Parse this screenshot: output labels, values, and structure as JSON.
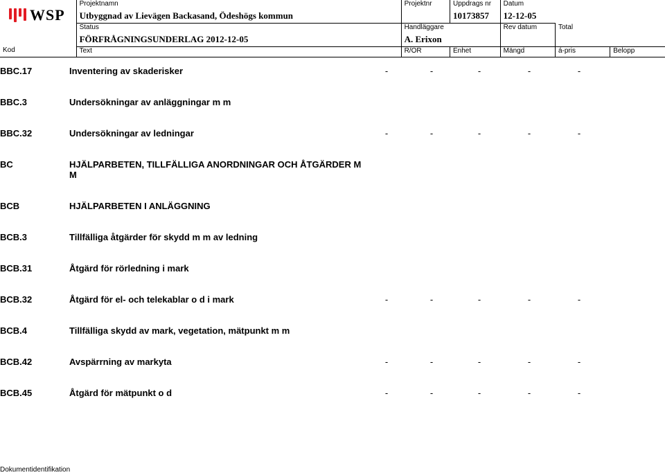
{
  "header": {
    "labels": {
      "projektnamn": "Projektnamn",
      "projektnr": "Projektnr",
      "uppdragsnr": "Uppdrags nr",
      "datum": "Datum",
      "status": "Status",
      "handlaggare": "Handläggare",
      "revdatum": "Rev datum",
      "total": "Total"
    },
    "values": {
      "projektnamn": "Utbyggnad av Lievägen Backasand, Ödeshögs kommun",
      "projektnr": "",
      "uppdragsnr": "10173857",
      "datum": "12-12-05",
      "status": "FÖRFRÅGNINGSUNDERLAG  2012-12-05",
      "handlaggare": "A. Erixon",
      "revdatum": "",
      "total": ""
    },
    "cols": {
      "kod": "Kod",
      "text": "Text",
      "ror": "R/OR",
      "enhet": "Enhet",
      "mangd": "Mängd",
      "apris": "á-pris",
      "belopp": "Belopp"
    }
  },
  "rows": [
    {
      "kod": "BBC.17",
      "text": "Inventering av skaderisker",
      "v": [
        "-",
        "-",
        "-",
        "-",
        "-"
      ]
    },
    {
      "kod": "BBC.3",
      "text": "Undersökningar av anläggningar m m",
      "v": [
        "",
        "",
        "",
        "",
        ""
      ]
    },
    {
      "kod": "BBC.32",
      "text": "Undersökningar av ledningar",
      "v": [
        "-",
        "-",
        "-",
        "-",
        "-"
      ]
    },
    {
      "kod": "BC",
      "text": "HJÄLPARBETEN, TILLFÄLLIGA ANORDNINGAR OCH ÅTGÄRDER M M",
      "v": [
        "",
        "",
        "",
        "",
        ""
      ]
    },
    {
      "kod": "BCB",
      "text": "HJÄLPARBETEN I ANLÄGGNING",
      "v": [
        "",
        "",
        "",
        "",
        ""
      ]
    },
    {
      "kod": "BCB.3",
      "text": "Tillfälliga åtgärder för skydd m m av ledning",
      "v": [
        "",
        "",
        "",
        "",
        ""
      ]
    },
    {
      "kod": "BCB.31",
      "text": "Åtgärd för rörledning i mark",
      "v": [
        "",
        "",
        "",
        "",
        ""
      ]
    },
    {
      "kod": "BCB.32",
      "text": "Åtgärd för el- och telekablar o d i mark",
      "v": [
        "-",
        "-",
        "-",
        "-",
        "-"
      ]
    },
    {
      "kod": "BCB.4",
      "text": "Tillfälliga skydd av mark, vegetation, mätpunkt m m",
      "v": [
        "",
        "",
        "",
        "",
        ""
      ]
    },
    {
      "kod": "BCB.42",
      "text": "Avspärrning av markyta",
      "v": [
        "-",
        "-",
        "-",
        "-",
        "-"
      ]
    },
    {
      "kod": "BCB.45",
      "text": "Åtgärd för mätpunkt o d",
      "v": [
        "-",
        "-",
        "-",
        "-",
        "-"
      ]
    }
  ],
  "docid": "Dokumentidentifikation",
  "logo": "WSP"
}
